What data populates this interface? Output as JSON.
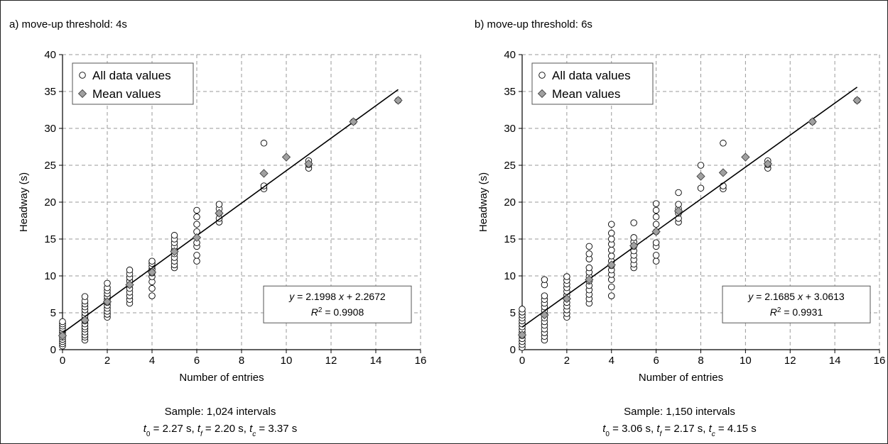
{
  "chart_data": [
    {
      "type": "scatter",
      "panel_title": "a) move-up threshold: 4s",
      "xlabel": "Number of entries",
      "ylabel": "Headway (s)",
      "xlim": [
        0,
        16
      ],
      "ylim": [
        0,
        40
      ],
      "xticks": [
        0,
        2,
        4,
        6,
        8,
        10,
        12,
        14,
        16
      ],
      "yticks": [
        0,
        5,
        10,
        15,
        20,
        25,
        30,
        35,
        40
      ],
      "grid": true,
      "legend": {
        "position": "top-left",
        "items": [
          {
            "label": "All data values",
            "marker": "open-circle"
          },
          {
            "label": "Mean values",
            "marker": "grey-diamond"
          }
        ]
      },
      "series": [
        {
          "name": "All data values",
          "points": [
            [
              0,
              0.5
            ],
            [
              0,
              0.8
            ],
            [
              0,
              1.1
            ],
            [
              0,
              1.4
            ],
            [
              0,
              1.7
            ],
            [
              0,
              2.0
            ],
            [
              0,
              2.3
            ],
            [
              0,
              2.6
            ],
            [
              0,
              2.9
            ],
            [
              0,
              3.2
            ],
            [
              0,
              3.5
            ],
            [
              0,
              3.8
            ],
            [
              1,
              1.3
            ],
            [
              1,
              1.7
            ],
            [
              1,
              2.0
            ],
            [
              1,
              2.4
            ],
            [
              1,
              2.8
            ],
            [
              1,
              3.1
            ],
            [
              1,
              3.5
            ],
            [
              1,
              3.9
            ],
            [
              1,
              4.2
            ],
            [
              1,
              4.6
            ],
            [
              1,
              5.0
            ],
            [
              1,
              5.4
            ],
            [
              1,
              5.8
            ],
            [
              1,
              6.2
            ],
            [
              1,
              6.6
            ],
            [
              1,
              7.2
            ],
            [
              2,
              4.4
            ],
            [
              2,
              4.8
            ],
            [
              2,
              5.2
            ],
            [
              2,
              5.6
            ],
            [
              2,
              6.0
            ],
            [
              2,
              6.4
            ],
            [
              2,
              6.8
            ],
            [
              2,
              7.2
            ],
            [
              2,
              7.6
            ],
            [
              2,
              8.0
            ],
            [
              2,
              8.4
            ],
            [
              2,
              9.0
            ],
            [
              3,
              6.3
            ],
            [
              3,
              6.8
            ],
            [
              3,
              7.3
            ],
            [
              3,
              7.8
            ],
            [
              3,
              8.3
            ],
            [
              3,
              8.8
            ],
            [
              3,
              9.3
            ],
            [
              3,
              9.8
            ],
            [
              3,
              10.3
            ],
            [
              3,
              10.8
            ],
            [
              4,
              7.3
            ],
            [
              4,
              8.3
            ],
            [
              4,
              9.2
            ],
            [
              4,
              9.9
            ],
            [
              4,
              10.4
            ],
            [
              4,
              10.9
            ],
            [
              4,
              11.3
            ],
            [
              4,
              11.7
            ],
            [
              4,
              12.0
            ],
            [
              5,
              11.1
            ],
            [
              5,
              11.5
            ],
            [
              5,
              12.0
            ],
            [
              5,
              12.5
            ],
            [
              5,
              13.0
            ],
            [
              5,
              13.5
            ],
            [
              5,
              14.0
            ],
            [
              5,
              14.5
            ],
            [
              5,
              15.0
            ],
            [
              5,
              15.5
            ],
            [
              6,
              12.0
            ],
            [
              6,
              12.8
            ],
            [
              6,
              14.0
            ],
            [
              6,
              14.5
            ],
            [
              6,
              16.0
            ],
            [
              6,
              17.0
            ],
            [
              6,
              18.0
            ],
            [
              6,
              18.9
            ],
            [
              7,
              17.3
            ],
            [
              7,
              17.8
            ],
            [
              7,
              18.5
            ],
            [
              7,
              19.1
            ],
            [
              7,
              19.7
            ],
            [
              9,
              21.8
            ],
            [
              9,
              22.2
            ],
            [
              9,
              28.0
            ],
            [
              11,
              24.6
            ],
            [
              11,
              25.1
            ],
            [
              11,
              25.6
            ],
            [
              13,
              30.9
            ],
            [
              15,
              33.8
            ]
          ]
        },
        {
          "name": "Mean values",
          "points": [
            [
              0,
              1.9
            ],
            [
              1,
              4.0
            ],
            [
              2,
              6.5
            ],
            [
              3,
              8.8
            ],
            [
              4,
              10.5
            ],
            [
              5,
              13.3
            ],
            [
              6,
              15.2
            ],
            [
              7,
              18.5
            ],
            [
              9,
              23.9
            ],
            [
              10,
              26.1
            ],
            [
              11,
              25.2
            ],
            [
              13,
              30.9
            ],
            [
              15,
              33.8
            ]
          ]
        }
      ],
      "trendline": {
        "slope": 2.1998,
        "intercept": 2.2672,
        "x_range": [
          0,
          15
        ]
      },
      "equation": {
        "y_sym": "y",
        "eq_rest": " = 2.1998 ",
        "x_sym": "x",
        "eq_tail": " + 2.2672",
        "r_sym": "R",
        "r_sup": "2",
        "r_rest": " = 0.9908"
      },
      "caption": {
        "sample": "Sample: 1,024 intervals",
        "t0": "2.27 s",
        "tf": "2.20 s",
        "tc": "3.37 s"
      }
    },
    {
      "type": "scatter",
      "panel_title": "b) move-up threshold: 6s",
      "xlabel": "Number of entries",
      "ylabel": "Headway (s)",
      "xlim": [
        0,
        16
      ],
      "ylim": [
        0,
        40
      ],
      "xticks": [
        0,
        2,
        4,
        6,
        8,
        10,
        12,
        14,
        16
      ],
      "yticks": [
        0,
        5,
        10,
        15,
        20,
        25,
        30,
        35,
        40
      ],
      "grid": true,
      "legend": {
        "position": "top-left",
        "items": [
          {
            "label": "All data values",
            "marker": "open-circle"
          },
          {
            "label": "Mean values",
            "marker": "grey-diamond"
          }
        ]
      },
      "series": [
        {
          "name": "All data values",
          "points": [
            [
              0,
              0.3
            ],
            [
              0,
              0.7
            ],
            [
              0,
              1.1
            ],
            [
              0,
              1.5
            ],
            [
              0,
              1.9
            ],
            [
              0,
              2.3
            ],
            [
              0,
              2.7
            ],
            [
              0,
              3.1
            ],
            [
              0,
              3.5
            ],
            [
              0,
              3.9
            ],
            [
              0,
              4.3
            ],
            [
              0,
              4.7
            ],
            [
              0,
              5.1
            ],
            [
              0,
              5.5
            ],
            [
              1,
              1.3
            ],
            [
              1,
              1.8
            ],
            [
              1,
              2.3
            ],
            [
              1,
              2.8
            ],
            [
              1,
              3.3
            ],
            [
              1,
              3.8
            ],
            [
              1,
              4.3
            ],
            [
              1,
              4.8
            ],
            [
              1,
              5.3
            ],
            [
              1,
              5.8
            ],
            [
              1,
              6.3
            ],
            [
              1,
              6.8
            ],
            [
              1,
              7.3
            ],
            [
              1,
              8.8
            ],
            [
              1,
              9.5
            ],
            [
              2,
              4.4
            ],
            [
              2,
              4.9
            ],
            [
              2,
              5.4
            ],
            [
              2,
              5.9
            ],
            [
              2,
              6.4
            ],
            [
              2,
              6.9
            ],
            [
              2,
              7.4
            ],
            [
              2,
              7.9
            ],
            [
              2,
              8.4
            ],
            [
              2,
              8.9
            ],
            [
              2,
              9.4
            ],
            [
              2,
              9.9
            ],
            [
              3,
              6.3
            ],
            [
              3,
              6.9
            ],
            [
              3,
              7.5
            ],
            [
              3,
              8.1
            ],
            [
              3,
              8.7
            ],
            [
              3,
              9.3
            ],
            [
              3,
              9.9
            ],
            [
              3,
              10.5
            ],
            [
              3,
              11.1
            ],
            [
              3,
              12.3
            ],
            [
              3,
              13.0
            ],
            [
              3,
              14.0
            ],
            [
              4,
              7.3
            ],
            [
              4,
              8.5
            ],
            [
              4,
              9.5
            ],
            [
              4,
              10.2
            ],
            [
              4,
              10.8
            ],
            [
              4,
              11.4
            ],
            [
              4,
              12.0
            ],
            [
              4,
              12.7
            ],
            [
              4,
              13.5
            ],
            [
              4,
              14.3
            ],
            [
              4,
              15.0
            ],
            [
              4,
              15.8
            ],
            [
              4,
              17.0
            ],
            [
              5,
              11.1
            ],
            [
              5,
              11.6
            ],
            [
              5,
              12.2
            ],
            [
              5,
              12.8
            ],
            [
              5,
              13.4
            ],
            [
              5,
              14.0
            ],
            [
              5,
              14.6
            ],
            [
              5,
              15.2
            ],
            [
              5,
              17.2
            ],
            [
              6,
              12.0
            ],
            [
              6,
              12.8
            ],
            [
              6,
              14.0
            ],
            [
              6,
              14.5
            ],
            [
              6,
              16.0
            ],
            [
              6,
              17.0
            ],
            [
              6,
              18.0
            ],
            [
              6,
              18.9
            ],
            [
              6,
              19.8
            ],
            [
              7,
              17.3
            ],
            [
              7,
              17.8
            ],
            [
              7,
              18.5
            ],
            [
              7,
              19.1
            ],
            [
              7,
              19.7
            ],
            [
              7,
              21.3
            ],
            [
              8,
              21.9
            ],
            [
              8,
              25.0
            ],
            [
              9,
              21.8
            ],
            [
              9,
              22.2
            ],
            [
              9,
              28.0
            ],
            [
              11,
              24.6
            ],
            [
              11,
              25.1
            ],
            [
              11,
              25.6
            ],
            [
              13,
              30.9
            ],
            [
              15,
              33.8
            ]
          ]
        },
        {
          "name": "Mean values",
          "points": [
            [
              0,
              2.0
            ],
            [
              1,
              4.7
            ],
            [
              2,
              6.9
            ],
            [
              3,
              9.5
            ],
            [
              4,
              11.5
            ],
            [
              5,
              14.1
            ],
            [
              6,
              16.0
            ],
            [
              7,
              18.8
            ],
            [
              8,
              23.5
            ],
            [
              9,
              24.0
            ],
            [
              10,
              26.1
            ],
            [
              11,
              25.2
            ],
            [
              13,
              30.9
            ],
            [
              15,
              33.8
            ]
          ]
        }
      ],
      "trendline": {
        "slope": 2.1685,
        "intercept": 3.0613,
        "x_range": [
          0,
          15
        ]
      },
      "equation": {
        "y_sym": "y",
        "eq_rest": " = 2.1685 ",
        "x_sym": "x",
        "eq_tail": " + 3.0613",
        "r_sym": "R",
        "r_sup": "2",
        "r_rest": " = 0.9931"
      },
      "caption": {
        "sample": "Sample: 1,150 intervals",
        "t0": "3.06 s",
        "tf": "2.17 s",
        "tc": "4.15 s"
      }
    }
  ]
}
